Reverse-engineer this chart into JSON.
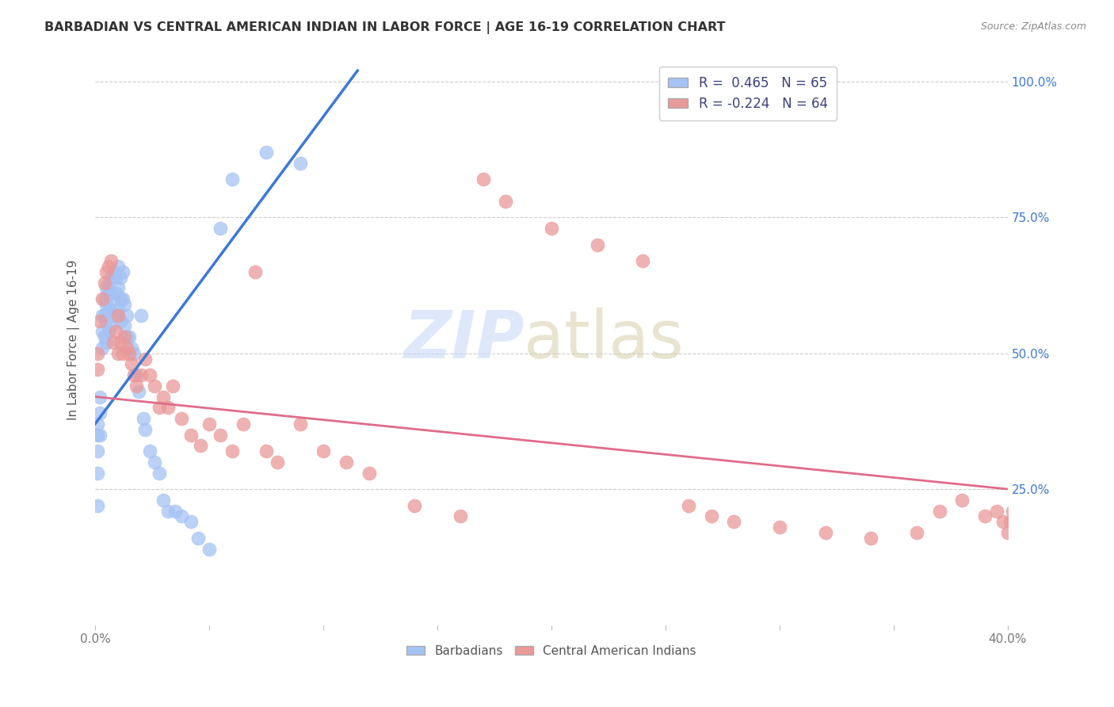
{
  "title": "BARBADIAN VS CENTRAL AMERICAN INDIAN IN LABOR FORCE | AGE 16-19 CORRELATION CHART",
  "source": "Source: ZipAtlas.com",
  "ylabel": "In Labor Force | Age 16-19",
  "xlim": [
    0.0,
    0.4
  ],
  "ylim": [
    0.0,
    1.05
  ],
  "xtick_positions": [
    0.0,
    0.05,
    0.1,
    0.15,
    0.2,
    0.25,
    0.3,
    0.35,
    0.4
  ],
  "xticklabels": [
    "0.0%",
    "",
    "",
    "",
    "",
    "",
    "",
    "",
    "40.0%"
  ],
  "ytick_positions": [
    0.0,
    0.25,
    0.5,
    0.75,
    1.0
  ],
  "ytick_labels_right": [
    "",
    "25.0%",
    "50.0%",
    "75.0%",
    "100.0%"
  ],
  "blue_r": 0.465,
  "blue_n": 65,
  "pink_r": -0.224,
  "pink_n": 64,
  "blue_color": "#a4c2f4",
  "pink_color": "#ea9999",
  "blue_line_color": "#3c78d8",
  "pink_line_color": "#e06c8a",
  "blue_line_x": [
    0.0,
    0.115
  ],
  "blue_line_y": [
    0.37,
    1.02
  ],
  "pink_line_x": [
    0.0,
    0.4
  ],
  "pink_line_y": [
    0.42,
    0.25
  ],
  "background_color": "#ffffff",
  "grid_color": "#cccccc",
  "watermark_zip_color": "#c9daf8",
  "watermark_atlas_color": "#d9d2b0",
  "blue_points_x": [
    0.001,
    0.001,
    0.001,
    0.001,
    0.001,
    0.002,
    0.002,
    0.002,
    0.003,
    0.003,
    0.003,
    0.004,
    0.004,
    0.004,
    0.005,
    0.005,
    0.005,
    0.005,
    0.006,
    0.006,
    0.006,
    0.006,
    0.007,
    0.007,
    0.007,
    0.007,
    0.008,
    0.008,
    0.009,
    0.009,
    0.009,
    0.01,
    0.01,
    0.01,
    0.011,
    0.011,
    0.011,
    0.012,
    0.012,
    0.013,
    0.013,
    0.014,
    0.014,
    0.015,
    0.016,
    0.017,
    0.018,
    0.019,
    0.02,
    0.021,
    0.022,
    0.024,
    0.026,
    0.028,
    0.03,
    0.032,
    0.035,
    0.038,
    0.042,
    0.045,
    0.05,
    0.055,
    0.06,
    0.075,
    0.09
  ],
  "blue_points_y": [
    0.37,
    0.35,
    0.32,
    0.28,
    0.22,
    0.42,
    0.39,
    0.35,
    0.57,
    0.54,
    0.51,
    0.6,
    0.57,
    0.53,
    0.62,
    0.59,
    0.56,
    0.52,
    0.63,
    0.61,
    0.58,
    0.54,
    0.64,
    0.61,
    0.58,
    0.55,
    0.65,
    0.6,
    0.64,
    0.61,
    0.57,
    0.66,
    0.62,
    0.58,
    0.64,
    0.6,
    0.56,
    0.65,
    0.6,
    0.59,
    0.55,
    0.57,
    0.53,
    0.53,
    0.51,
    0.5,
    0.46,
    0.43,
    0.57,
    0.38,
    0.36,
    0.32,
    0.3,
    0.28,
    0.23,
    0.21,
    0.21,
    0.2,
    0.19,
    0.16,
    0.14,
    0.73,
    0.82,
    0.87,
    0.85
  ],
  "pink_points_x": [
    0.001,
    0.001,
    0.002,
    0.003,
    0.004,
    0.005,
    0.006,
    0.007,
    0.008,
    0.009,
    0.01,
    0.01,
    0.011,
    0.012,
    0.013,
    0.014,
    0.015,
    0.016,
    0.017,
    0.018,
    0.02,
    0.022,
    0.024,
    0.026,
    0.028,
    0.03,
    0.032,
    0.034,
    0.038,
    0.042,
    0.046,
    0.05,
    0.055,
    0.06,
    0.065,
    0.07,
    0.075,
    0.08,
    0.09,
    0.1,
    0.11,
    0.12,
    0.14,
    0.16,
    0.17,
    0.18,
    0.2,
    0.22,
    0.24,
    0.26,
    0.27,
    0.28,
    0.3,
    0.32,
    0.34,
    0.36,
    0.37,
    0.38,
    0.39,
    0.395,
    0.398,
    0.4,
    0.401,
    0.402
  ],
  "pink_points_y": [
    0.5,
    0.47,
    0.56,
    0.6,
    0.63,
    0.65,
    0.66,
    0.67,
    0.52,
    0.54,
    0.57,
    0.5,
    0.52,
    0.5,
    0.53,
    0.51,
    0.5,
    0.48,
    0.46,
    0.44,
    0.46,
    0.49,
    0.46,
    0.44,
    0.4,
    0.42,
    0.4,
    0.44,
    0.38,
    0.35,
    0.33,
    0.37,
    0.35,
    0.32,
    0.37,
    0.65,
    0.32,
    0.3,
    0.37,
    0.32,
    0.3,
    0.28,
    0.22,
    0.2,
    0.82,
    0.78,
    0.73,
    0.7,
    0.67,
    0.22,
    0.2,
    0.19,
    0.18,
    0.17,
    0.16,
    0.17,
    0.21,
    0.23,
    0.2,
    0.21,
    0.19,
    0.17,
    0.19,
    0.21
  ]
}
